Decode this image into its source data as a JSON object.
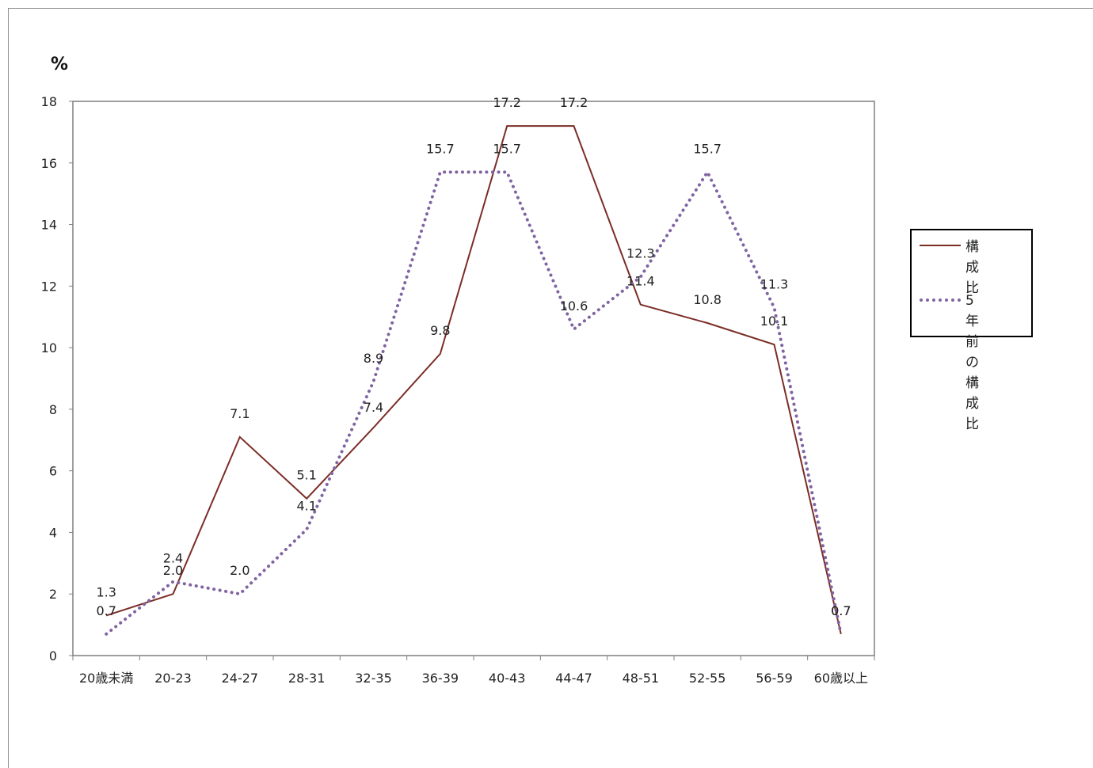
{
  "chart_data": {
    "type": "line",
    "unit_label": "%",
    "categories": [
      "20歳未満",
      "20-23",
      "24-27",
      "28-31",
      "32-35",
      "36-39",
      "40-43",
      "44-47",
      "48-51",
      "52-55",
      "56-59",
      "60歳以上"
    ],
    "ylim": [
      0,
      18
    ],
    "yticks": [
      "0",
      "2",
      "4",
      "6",
      "8",
      "10",
      "12",
      "14",
      "16",
      "18"
    ],
    "grid": false,
    "legend_position": "right",
    "series": [
      {
        "name": "構成比",
        "color": "#7b2d26",
        "style": "solid",
        "values": [
          1.3,
          2.0,
          7.1,
          5.1,
          7.4,
          9.8,
          17.2,
          17.2,
          11.4,
          10.8,
          10.1,
          0.7
        ],
        "labels": [
          "1.3",
          "2.0",
          "7.1",
          "5.1",
          "7.4",
          "9.8",
          "17.2",
          "17.2",
          "11.4",
          "10.8",
          "10.1",
          "0.7"
        ]
      },
      {
        "name": "5年前の構成比",
        "color": "#8064a2",
        "style": "dotted",
        "values": [
          0.7,
          2.4,
          2.0,
          4.1,
          8.9,
          15.7,
          15.7,
          10.6,
          12.3,
          15.7,
          11.3,
          0.7
        ],
        "labels": [
          "0.7",
          "2.4",
          "2.0",
          "4.1",
          "8.9",
          "15.7",
          "15.7",
          "10.6",
          "12.3",
          "15.7",
          "11.3",
          "0.7"
        ]
      }
    ]
  },
  "legend": {
    "series1_label": "構成比",
    "series2_label_line1": "5年前の",
    "series2_label_line2": "構成比"
  }
}
